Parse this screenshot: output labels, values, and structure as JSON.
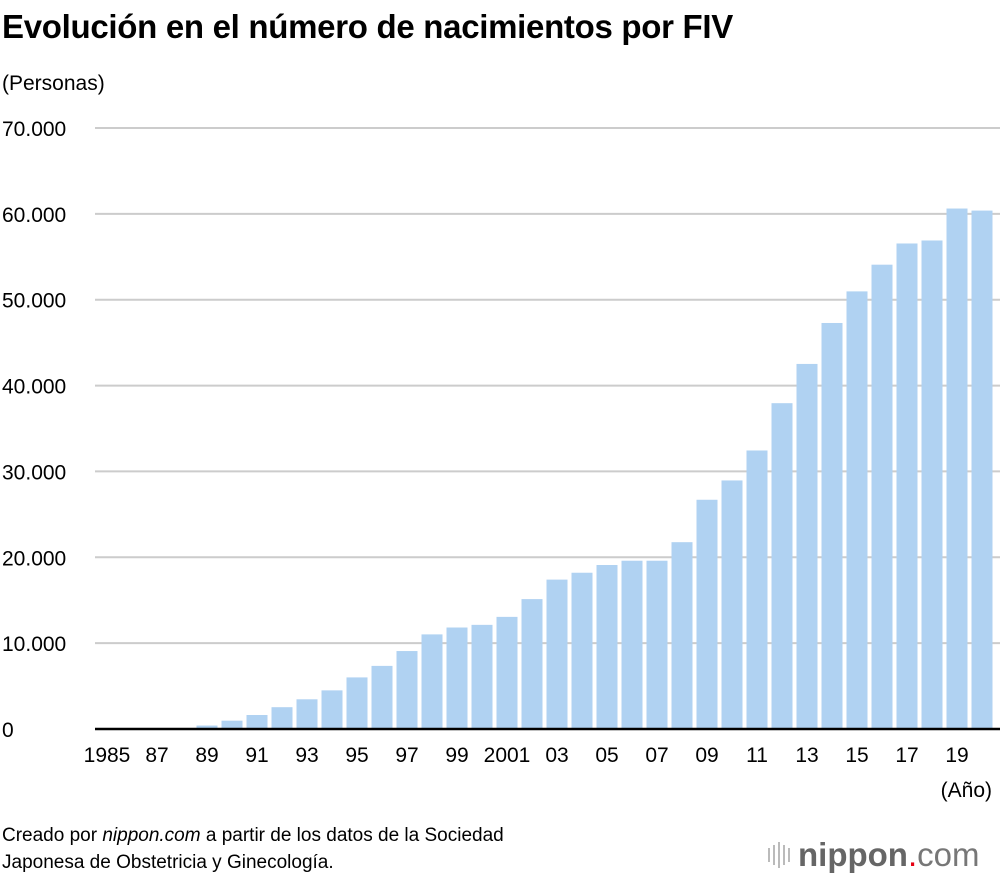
{
  "chart_data": {
    "type": "bar",
    "title": "Evolución en el número de nacimientos por FIV",
    "ylabel": "(Personas)",
    "xlabel": "(Año)",
    "ylim": [
      0,
      70000
    ],
    "yticks": [
      0,
      10000,
      20000,
      30000,
      40000,
      50000,
      60000,
      70000
    ],
    "ytick_labels": [
      "0",
      "10.000",
      "20.000",
      "30.000",
      "40.000",
      "50.000",
      "60.000",
      "70.000"
    ],
    "grid": true,
    "categories": [
      1985,
      1986,
      1987,
      1988,
      1989,
      1990,
      1991,
      1992,
      1993,
      1994,
      1995,
      1996,
      1997,
      1998,
      1999,
      2000,
      2001,
      2002,
      2003,
      2004,
      2005,
      2006,
      2007,
      2008,
      2009,
      2010,
      2011,
      2012,
      2013,
      2014,
      2015,
      2016,
      2017,
      2018,
      2019,
      2020
    ],
    "xtick_labels": [
      "1985",
      "",
      "87",
      "",
      "89",
      "",
      "91",
      "",
      "93",
      "",
      "95",
      "",
      "97",
      "",
      "99",
      "",
      "2001",
      "",
      "03",
      "",
      "05",
      "",
      "07",
      "",
      "09",
      "",
      "11",
      "",
      "13",
      "",
      "15",
      "",
      "17",
      "",
      "19",
      ""
    ],
    "values": [
      0,
      0,
      0,
      0,
      400,
      970,
      1630,
      2540,
      3460,
      4500,
      6010,
      7350,
      9080,
      11020,
      11820,
      12130,
      13060,
      15130,
      17400,
      18200,
      19100,
      19600,
      19600,
      21760,
      26700,
      28950,
      32440,
      37950,
      42520,
      47290,
      50970,
      54080,
      56550,
      56900,
      60620,
      60380
    ],
    "bar_color": "#b0d2f2",
    "grid_color": "#cccccc"
  },
  "source": {
    "prefix": "Creado por ",
    "site": "nippon.com",
    "suffix": " a partir de los datos de la Sociedad",
    "line2": "Japonesa de Obstetricia y Ginecología."
  },
  "logo": {
    "name": "nippon",
    "dot": ".",
    "tld": "com"
  }
}
